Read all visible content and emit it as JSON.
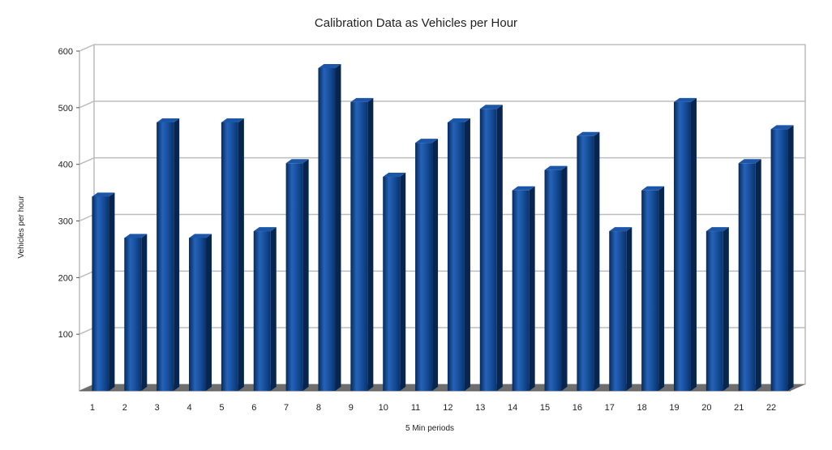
{
  "chart_data": {
    "type": "bar",
    "title": "Calibration Data as Vehicles per Hour",
    "xlabel": "5 Min periods",
    "ylabel": "Vehicles per hour",
    "categories": [
      "1",
      "2",
      "3",
      "4",
      "5",
      "6",
      "7",
      "8",
      "9",
      "10",
      "11",
      "12",
      "13",
      "14",
      "15",
      "16",
      "17",
      "18",
      "19",
      "20",
      "21",
      "22"
    ],
    "values": [
      343,
      270,
      474,
      270,
      474,
      282,
      402,
      570,
      510,
      378,
      438,
      474,
      498,
      354,
      390,
      450,
      282,
      354,
      510,
      282,
      402,
      462
    ],
    "yticks": [
      "600",
      "500",
      "400",
      "300",
      "200",
      "100"
    ],
    "ylim": [
      0,
      600
    ],
    "grid": true,
    "legend": "none",
    "colors": {
      "bar_front": "#0a3f8a",
      "bar_highlight": "#2f6fc4",
      "bar_side": "#062650",
      "bar_top": "#1c56a8",
      "grid": "#bdbdbd",
      "floor": "#6e6e6e",
      "back_wall": "#ffffff"
    }
  }
}
